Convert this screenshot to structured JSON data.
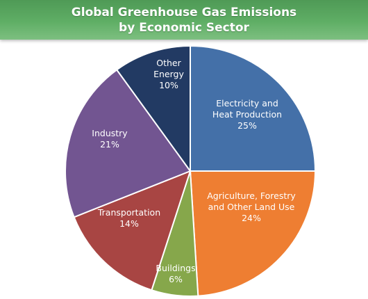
{
  "chart_data": {
    "type": "pie",
    "title": [
      "Global Greenhouse Gas Emissions",
      "by Economic Sector"
    ],
    "slices": [
      {
        "label": [
          "Electricity and",
          "Heat Production"
        ],
        "value": 25,
        "value_label": "25%",
        "color": "#4470a8"
      },
      {
        "label": [
          "Agriculture, Forestry",
          "and Other Land Use"
        ],
        "value": 24,
        "value_label": "24%",
        "color": "#ee7e32"
      },
      {
        "label": [
          "Buildings"
        ],
        "value": 6,
        "value_label": "6%",
        "color": "#86a74b"
      },
      {
        "label": [
          "Transportation"
        ],
        "value": 14,
        "value_label": "14%",
        "color": "#a84543"
      },
      {
        "label": [
          "Industry"
        ],
        "value": 21,
        "value_label": "21%",
        "color": "#725591"
      },
      {
        "label": [
          "Other",
          "Energy"
        ],
        "value": 10,
        "value_label": "10%",
        "color": "#223a63"
      }
    ],
    "start_angle_deg": 0,
    "direction": "clockwise",
    "legend": "none"
  }
}
